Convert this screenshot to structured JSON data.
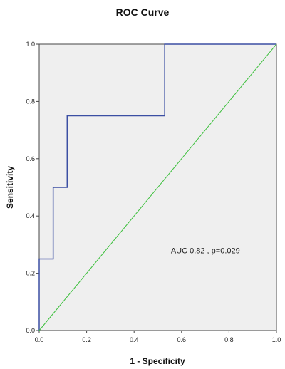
{
  "chart_data": {
    "type": "line",
    "title": "ROC Curve",
    "xlabel": "1 - Specificity",
    "ylabel": "Sensitivity",
    "xlim": [
      0,
      1
    ],
    "ylim": [
      0,
      1
    ],
    "x_ticks": [
      "0.0",
      "0.2",
      "0.4",
      "0.6",
      "0.8",
      "1.0"
    ],
    "y_ticks": [
      "0.0",
      "0.2",
      "0.4",
      "0.6",
      "0.8",
      "1.0"
    ],
    "grid": false,
    "plot_background": "#efefef",
    "series": [
      {
        "role": "roc-curve",
        "color": "#3b4fa3",
        "x": [
          0.0,
          0.0,
          0.059,
          0.059,
          0.118,
          0.118,
          0.529,
          0.529,
          1.0
        ],
        "y": [
          0.0,
          0.25,
          0.25,
          0.5,
          0.5,
          0.75,
          0.75,
          1.0,
          1.0
        ]
      },
      {
        "role": "reference-line",
        "color": "#3cbf3c",
        "x": [
          0.0,
          1.0
        ],
        "y": [
          0.0,
          1.0
        ]
      }
    ],
    "annotation": {
      "text": "AUC 0.82 , p=0.029",
      "x": 0.555,
      "y": 0.27
    }
  }
}
